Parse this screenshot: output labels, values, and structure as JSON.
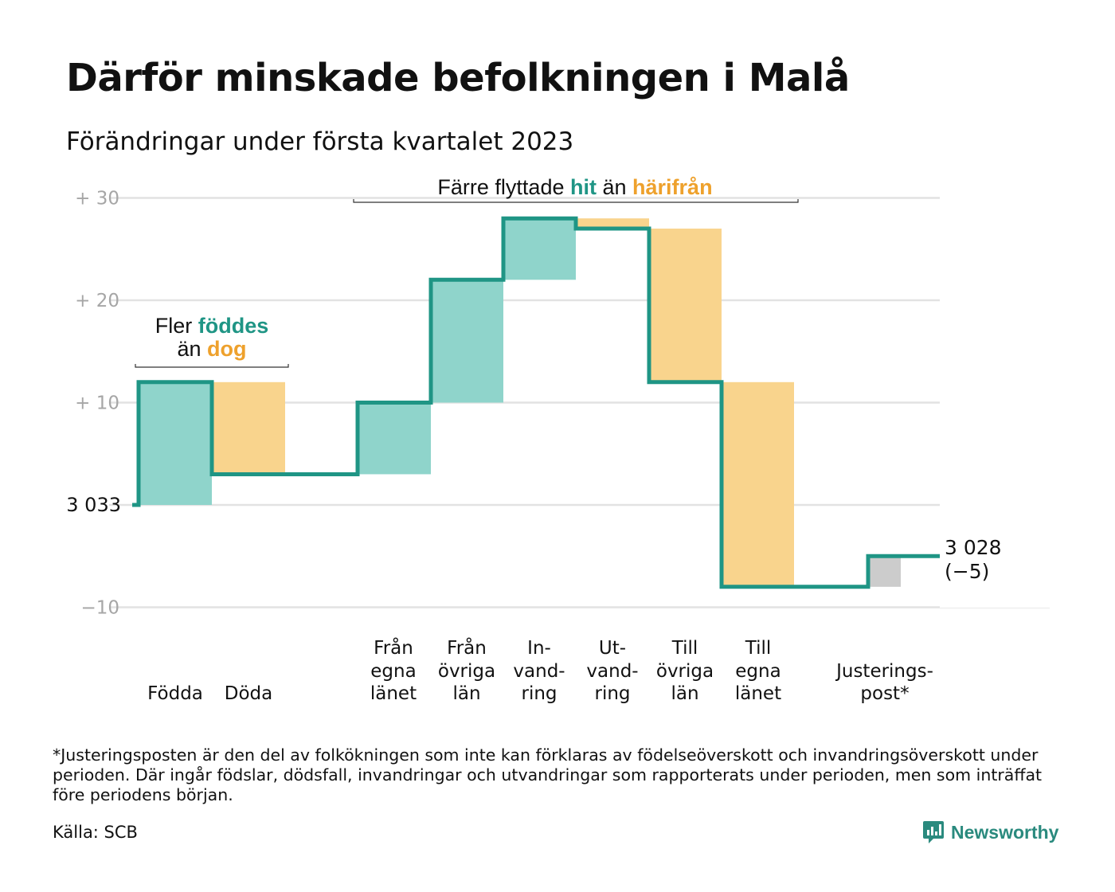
{
  "title": "Därför minskade befolkningen i Malå",
  "subtitle": "Förändringar under första kvartalet 2023",
  "chart_data": {
    "type": "waterfall",
    "start_value": 3033,
    "start_label": "3 033",
    "end_label_lines": [
      "3 028",
      "(−5)"
    ],
    "ylim": [
      -10,
      30
    ],
    "yticks": [
      {
        "value": 30,
        "label": "+ 30"
      },
      {
        "value": 20,
        "label": "+ 20"
      },
      {
        "value": 10,
        "label": "+ 10"
      },
      {
        "value": -10,
        "label": "−10"
      }
    ],
    "grid": true,
    "steps": [
      {
        "key": "fodda",
        "label_lines": [
          "Födda"
        ],
        "change": 12,
        "kind": "in"
      },
      {
        "key": "doda",
        "label_lines": [
          "Döda"
        ],
        "change": -9,
        "kind": "out"
      },
      {
        "key": "fran-egna-lanet",
        "label_lines": [
          "Från",
          "egna",
          "länet"
        ],
        "change": 7,
        "kind": "in"
      },
      {
        "key": "fran-ovriga-lan",
        "label_lines": [
          "Från",
          "övriga",
          "län"
        ],
        "change": 12,
        "kind": "in"
      },
      {
        "key": "invandring",
        "label_lines": [
          "In-",
          "vand-",
          "ring"
        ],
        "change": 6,
        "kind": "in"
      },
      {
        "key": "utvandring",
        "label_lines": [
          "Ut-",
          "vand-",
          "ring"
        ],
        "change": -1,
        "kind": "out"
      },
      {
        "key": "till-ovriga-lan",
        "label_lines": [
          "Till",
          "övriga",
          "län"
        ],
        "change": -15,
        "kind": "out"
      },
      {
        "key": "till-egna-lanet",
        "label_lines": [
          "Till",
          "egna",
          "länet"
        ],
        "change": -20,
        "kind": "out"
      },
      {
        "key": "justeringspost",
        "label_lines": [
          "Justerings-",
          "post*"
        ],
        "change": 3,
        "kind": "adjust"
      }
    ],
    "annotations": [
      {
        "key": "births-deaths",
        "parts": [
          {
            "line": 0,
            "text": "Fler ",
            "style": "plain"
          },
          {
            "line": 0,
            "text": "föddes",
            "style": "in"
          },
          {
            "line": 1,
            "text": "än ",
            "style": "plain"
          },
          {
            "line": 1,
            "text": "dog",
            "style": "out"
          }
        ]
      },
      {
        "key": "migration",
        "parts": [
          {
            "line": 0,
            "text": "Färre flyttade ",
            "style": "plain"
          },
          {
            "line": 0,
            "text": "hit",
            "style": "in"
          },
          {
            "line": 0,
            "text": " än ",
            "style": "plain"
          },
          {
            "line": 0,
            "text": "härifrån",
            "style": "out"
          }
        ]
      }
    ],
    "colors": {
      "in": "#8fd4cb",
      "out": "#f9d48d",
      "adjust": "#cccccc",
      "line": "#1f9585",
      "in_text": "#1f9585",
      "out_text": "#eea12c",
      "grid": "#e2e2e2",
      "tick_text": "#a6a6a6"
    }
  },
  "footnote": "*Justeringsposten är den del av folkökningen som inte kan förklaras av födelseöverskott och invandringsöverskott under perioden. Där ingår födslar, dödsfall, invandringar och utvandringar som rapporterats under perioden, men som inträffat före periodens början.",
  "source": "Källa: SCB",
  "brand": {
    "name": "Newsworthy",
    "icon": "bar-chart-speech-bubble-icon"
  }
}
